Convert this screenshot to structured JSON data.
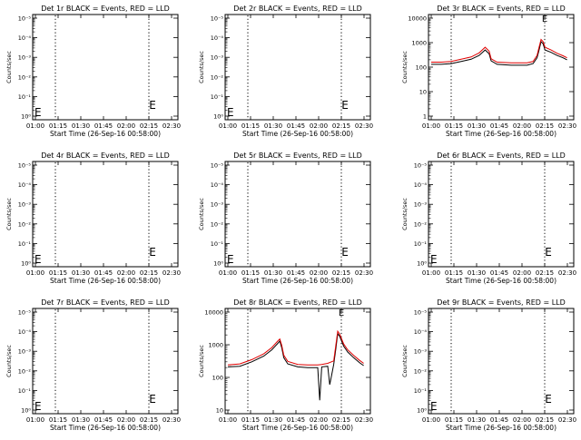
{
  "chart_data": [
    {
      "type": "line",
      "title": "Det 1r BLACK = Events, RED = LLD",
      "xlabel": "Start Time (26-Sep-16 00:58:00)",
      "ylabel": "Counts/sec",
      "yscale": "log",
      "ytick_labels": [
        "10⁰",
        "10⁻¹",
        "10⁻²",
        "10⁻³",
        "10⁻⁴",
        "10⁻⁵"
      ],
      "xtick_labels": [
        "01:00",
        "01:15",
        "01:30",
        "01:45",
        "02:00",
        "02:15",
        "02:30"
      ],
      "series": [],
      "markers": [
        "E"
      ]
    },
    {
      "type": "line",
      "title": "Det 2r BLACK = Events, RED = LLD",
      "xlabel": "Start Time (26-Sep-16 00:58:00)",
      "ylabel": "Counts/sec",
      "yscale": "log",
      "ytick_labels": [
        "10⁰",
        "10⁻¹",
        "10⁻²",
        "10⁻³",
        "10⁻⁴",
        "10⁻⁵"
      ],
      "xtick_labels": [
        "01:00",
        "01:15",
        "01:30",
        "01:45",
        "02:00",
        "02:15",
        "02:30"
      ],
      "series": [],
      "markers": [
        "E"
      ]
    },
    {
      "type": "line",
      "title": "Det 3r BLACK = Events, RED = LLD",
      "xlabel": "Start Time (26-Sep-16 00:58:00)",
      "ylabel": "Counts/sec",
      "yscale": "log",
      "ytick_labels": [
        "1",
        "10",
        "100",
        "1000",
        "10000"
      ],
      "xtick_labels": [
        "01:00",
        "01:15",
        "01:30",
        "01:45",
        "02:00",
        "02:15",
        "02:30"
      ],
      "series": [
        {
          "color": "#000000",
          "points": [
            [
              0,
              130
            ],
            [
              5,
              130
            ],
            [
              10,
              140
            ],
            [
              15,
              170
            ],
            [
              20,
              210
            ],
            [
              24,
              300
            ],
            [
              27,
              500
            ],
            [
              29,
              350
            ],
            [
              30,
              180
            ],
            [
              33,
              130
            ],
            [
              40,
              120
            ],
            [
              48,
              120
            ],
            [
              51,
              140
            ],
            [
              53,
              240
            ],
            [
              54,
              500
            ],
            [
              55,
              1100
            ],
            [
              56,
              900
            ],
            [
              57,
              500
            ],
            [
              60,
              400
            ],
            [
              63,
              300
            ],
            [
              66,
              240
            ],
            [
              68,
              200
            ]
          ]
        },
        {
          "color": "#e00000",
          "points": [
            [
              0,
              160
            ],
            [
              5,
              160
            ],
            [
              10,
              170
            ],
            [
              15,
              210
            ],
            [
              20,
              260
            ],
            [
              24,
              380
            ],
            [
              27,
              650
            ],
            [
              29,
              450
            ],
            [
              30,
              220
            ],
            [
              33,
              160
            ],
            [
              40,
              150
            ],
            [
              48,
              150
            ],
            [
              51,
              170
            ],
            [
              53,
              300
            ],
            [
              54,
              650
            ],
            [
              55,
              1350
            ],
            [
              56,
              1100
            ],
            [
              57,
              650
            ],
            [
              60,
              500
            ],
            [
              63,
              370
            ],
            [
              66,
              290
            ],
            [
              68,
              240
            ]
          ]
        }
      ],
      "markers": [
        "E"
      ]
    },
    {
      "type": "line",
      "title": "Det 4r BLACK = Events, RED = LLD",
      "xlabel": "Start Time (26-Sep-16 00:58:00)",
      "ylabel": "Counts/sec",
      "yscale": "log",
      "ytick_labels": [
        "10⁰",
        "10⁻¹",
        "10⁻²",
        "10⁻³",
        "10⁻⁴",
        "10⁻⁵"
      ],
      "xtick_labels": [
        "01:00",
        "01:15",
        "01:30",
        "01:45",
        "02:00",
        "02:15",
        "02:30"
      ],
      "series": [],
      "markers": [
        "E"
      ]
    },
    {
      "type": "line",
      "title": "Det 5r BLACK = Events, RED = LLD",
      "xlabel": "Start Time (26-Sep-16 00:58:00)",
      "ylabel": "Counts/sec",
      "yscale": "log",
      "ytick_labels": [
        "10⁰",
        "10⁻¹",
        "10⁻²",
        "10⁻³",
        "10⁻⁴",
        "10⁻⁵"
      ],
      "xtick_labels": [
        "01:00",
        "01:15",
        "01:30",
        "01:45",
        "02:00",
        "02:15",
        "02:30"
      ],
      "series": [],
      "markers": [
        "E"
      ]
    },
    {
      "type": "line",
      "title": "Det 6r BLACK = Events, RED = LLD",
      "xlabel": "Start Time (26-Sep-16 00:58:00)",
      "ylabel": "Counts/sec",
      "yscale": "log",
      "ytick_labels": [
        "10⁰",
        "10⁻¹",
        "10⁻²",
        "10⁻³",
        "10⁻⁴",
        "10⁻⁵"
      ],
      "xtick_labels": [
        "01:00",
        "01:15",
        "01:30",
        "01:45",
        "02:00",
        "02:15",
        "02:30"
      ],
      "series": [],
      "markers": [
        "E"
      ]
    },
    {
      "type": "line",
      "title": "Det 7r BLACK = Events, RED = LLD",
      "xlabel": "Start Time (26-Sep-16 00:58:00)",
      "ylabel": "Counts/sec",
      "yscale": "log",
      "ytick_labels": [
        "10⁰",
        "10⁻¹",
        "10⁻²",
        "10⁻³",
        "10⁻⁴",
        "10⁻⁵"
      ],
      "xtick_labels": [
        "01:00",
        "01:15",
        "01:30",
        "01:45",
        "02:00",
        "02:15",
        "02:30"
      ],
      "series": [],
      "markers": [
        "E"
      ]
    },
    {
      "type": "line",
      "title": "Det 8r BLACK = Events, RED = LLD",
      "xlabel": "Start Time (26-Sep-16 00:58:00)",
      "ylabel": "Counts/sec",
      "yscale": "log",
      "ytick_labels": [
        "10",
        "100",
        "1000",
        "10000"
      ],
      "xtick_labels": [
        "01:00",
        "01:15",
        "01:30",
        "01:45",
        "02:00",
        "02:15",
        "02:30"
      ],
      "series": [
        {
          "color": "#000000",
          "points": [
            [
              0,
              210
            ],
            [
              6,
              220
            ],
            [
              12,
              300
            ],
            [
              18,
              450
            ],
            [
              22,
              700
            ],
            [
              25,
              1100
            ],
            [
              26,
              1300
            ],
            [
              27,
              800
            ],
            [
              28,
              400
            ],
            [
              30,
              260
            ],
            [
              35,
              210
            ],
            [
              40,
              200
            ],
            [
              45,
              200
            ],
            [
              46,
              20
            ],
            [
              47,
              210
            ],
            [
              50,
              220
            ],
            [
              51,
              60
            ],
            [
              52,
              120
            ],
            [
              53,
              250
            ],
            [
              54,
              700
            ],
            [
              55,
              2200
            ],
            [
              56,
              1800
            ],
            [
              58,
              900
            ],
            [
              60,
              600
            ],
            [
              63,
              400
            ],
            [
              66,
              280
            ],
            [
              68,
              230
            ]
          ]
        },
        {
          "color": "#e00000",
          "points": [
            [
              0,
              240
            ],
            [
              6,
              260
            ],
            [
              12,
              350
            ],
            [
              18,
              530
            ],
            [
              22,
              820
            ],
            [
              25,
              1300
            ],
            [
              26,
              1500
            ],
            [
              27,
              950
            ],
            [
              28,
              480
            ],
            [
              30,
              310
            ],
            [
              35,
              250
            ],
            [
              40,
              240
            ],
            [
              45,
              240
            ],
            [
              47,
              250
            ],
            [
              50,
              270
            ],
            [
              53,
              320
            ],
            [
              54,
              900
            ],
            [
              55,
              2600
            ],
            [
              56,
              2100
            ],
            [
              58,
              1050
            ],
            [
              60,
              700
            ],
            [
              63,
              470
            ],
            [
              66,
              330
            ],
            [
              68,
              270
            ]
          ]
        }
      ],
      "markers": [
        "E"
      ]
    },
    {
      "type": "line",
      "title": "Det 9r BLACK = Events, RED = LLD",
      "xlabel": "Start Time (26-Sep-16 00:58:00)",
      "ylabel": "Counts/sec",
      "yscale": "log",
      "ytick_labels": [
        "10⁰",
        "10⁻¹",
        "10⁻²",
        "10⁻³",
        "10⁻⁴",
        "10⁻⁵"
      ],
      "xtick_labels": [
        "01:00",
        "01:15",
        "01:30",
        "01:45",
        "02:00",
        "02:15",
        "02:30"
      ],
      "series": [],
      "markers": [
        "E"
      ]
    }
  ]
}
